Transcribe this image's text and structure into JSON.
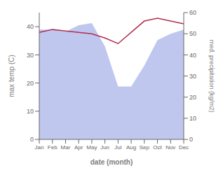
{
  "chart_data": {
    "type": "line",
    "categories": [
      "Jan",
      "Feb",
      "Mar",
      "Apr",
      "May",
      "Jun",
      "Jul",
      "Aug",
      "Sep",
      "Oct",
      "Nov",
      "Dec"
    ],
    "xlabel": "date (month)",
    "ylabel": "max temp (C)",
    "y2label": "med. precipitation (kg/m2)",
    "ylim": [
      0,
      45
    ],
    "yticks": [
      0,
      10,
      20,
      30,
      40
    ],
    "y2lim": [
      0,
      60
    ],
    "y2ticks": [
      0,
      10,
      20,
      30,
      40,
      50,
      60
    ],
    "grid": false,
    "series": [
      {
        "type": "area",
        "axis": "y2",
        "color": "#aab4e8",
        "values": [
          52,
          52,
          51,
          54,
          55,
          44,
          25,
          25,
          35,
          47,
          50,
          52
        ]
      },
      {
        "type": "line",
        "color": "#b03050",
        "values": [
          38.0,
          39.0,
          38.5,
          38.0,
          37.5,
          36.0,
          34.0,
          38.0,
          42.0,
          43.0,
          42.0,
          41.0
        ]
      }
    ]
  }
}
